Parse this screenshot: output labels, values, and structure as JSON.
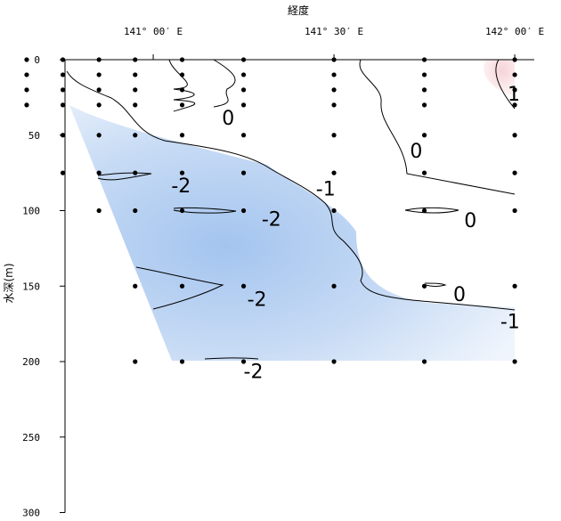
{
  "chart_data": {
    "type": "heatmap",
    "title": "",
    "xlabel": "経度",
    "ylabel": "水深(m)",
    "x_tick_labels": [
      {
        "lon": 141.0,
        "label": "141° 00′ E"
      },
      {
        "lon": 141.5,
        "label": "141° 30′ E"
      },
      {
        "lon": 142.0,
        "label": "142° 00′ E"
      }
    ],
    "y_ticks": [
      0,
      50,
      100,
      150,
      200,
      250,
      300
    ],
    "ylim": [
      300,
      0
    ],
    "xlim": [
      140.64,
      142.05
    ],
    "colors": {
      "cold": "#a9c8f0",
      "cold_light": "#d8e6f8",
      "warm": "#f7d9dc",
      "line": "#000000"
    },
    "stations": [
      {
        "lon": 140.65,
        "depths": [
          0,
          10,
          20,
          30
        ]
      },
      {
        "lon": 140.75,
        "depths": [
          0,
          10,
          20,
          30,
          50,
          75
        ]
      },
      {
        "lon": 140.85,
        "depths": [
          0,
          10,
          20,
          30,
          50,
          75,
          100
        ]
      },
      {
        "lon": 140.95,
        "depths": [
          0,
          10,
          20,
          30,
          50,
          75,
          100,
          150,
          200
        ]
      },
      {
        "lon": 141.08,
        "depths": [
          0,
          10,
          20,
          30,
          50,
          75,
          100,
          150,
          200
        ]
      },
      {
        "lon": 141.25,
        "depths": [
          0,
          10,
          20,
          30,
          50,
          75,
          100,
          150,
          200
        ]
      },
      {
        "lon": 141.5,
        "depths": [
          0,
          10,
          20,
          30,
          50,
          75,
          100,
          150,
          200
        ]
      },
      {
        "lon": 141.75,
        "depths": [
          0,
          10,
          20,
          30,
          50,
          75,
          100,
          150,
          200
        ]
      },
      {
        "lon": 142.0,
        "depths": [
          0,
          10,
          20,
          30,
          50,
          75,
          100,
          150,
          200
        ]
      }
    ],
    "contour_labels": [
      {
        "text": "0",
        "lon": 141.19,
        "depth": 43
      },
      {
        "text": "0",
        "lon": 141.71,
        "depth": 65
      },
      {
        "text": "-2",
        "lon": 141.05,
        "depth": 88
      },
      {
        "text": "-1",
        "lon": 141.45,
        "depth": 90
      },
      {
        "text": "-2",
        "lon": 141.3,
        "depth": 110
      },
      {
        "text": "0",
        "lon": 141.86,
        "depth": 111
      },
      {
        "text": "-2",
        "lon": 141.26,
        "depth": 163
      },
      {
        "text": "0",
        "lon": 141.83,
        "depth": 160
      },
      {
        "text": "-1",
        "lon": 141.96,
        "depth": 178
      },
      {
        "text": "-2",
        "lon": 141.25,
        "depth": 211
      },
      {
        "text": "1",
        "lon": 141.98,
        "depth": 27
      }
    ]
  }
}
